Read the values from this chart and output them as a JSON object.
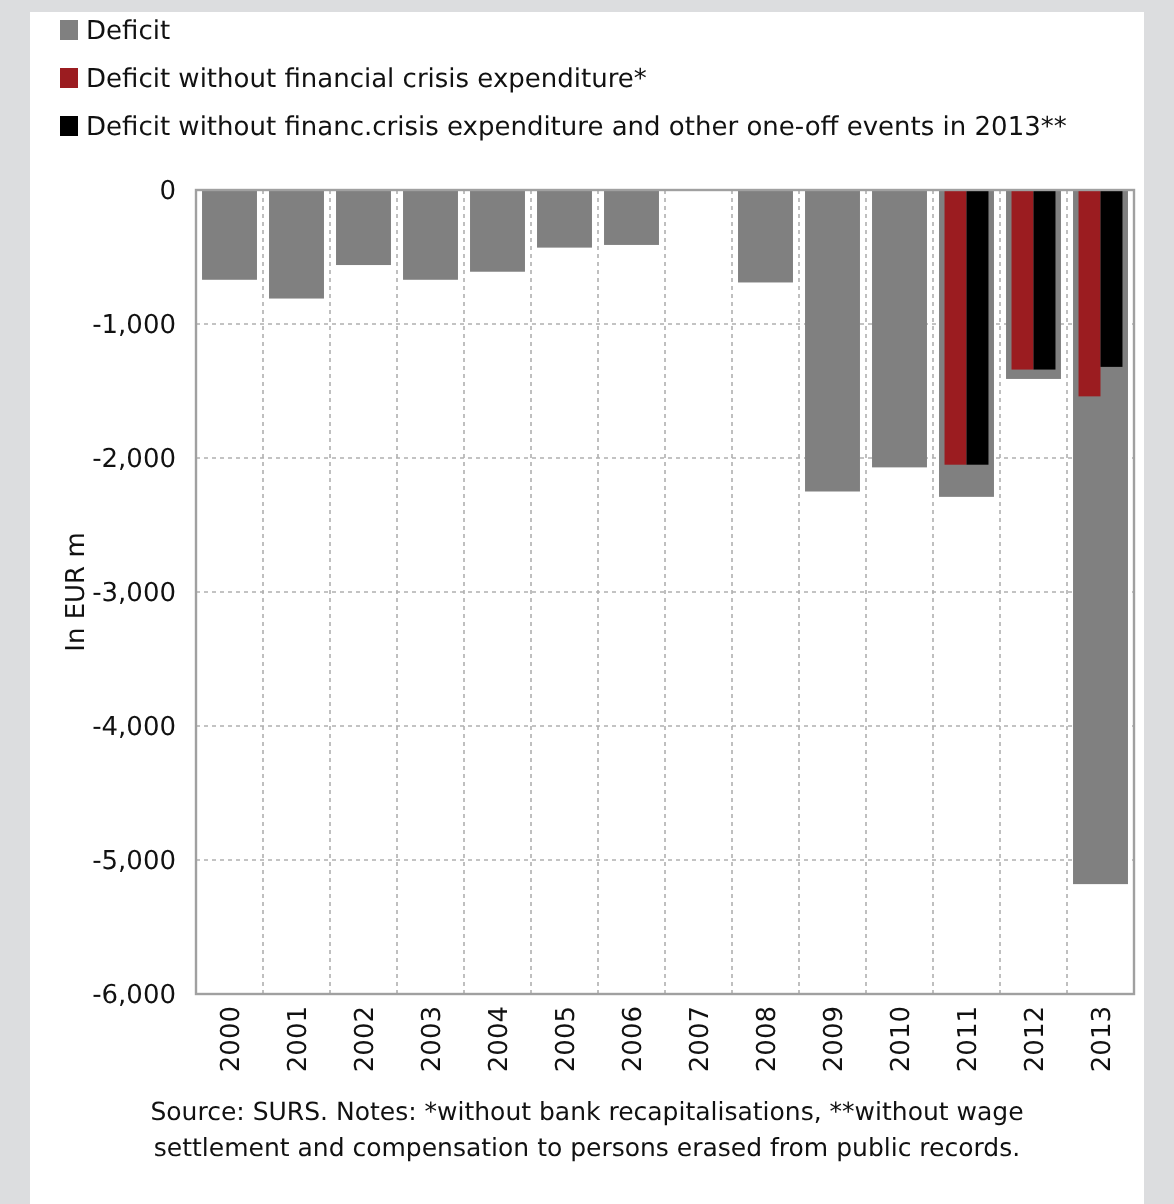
{
  "chart_data": {
    "type": "bar",
    "ylabel": "In EUR m",
    "categories": [
      "2000",
      "2001",
      "2002",
      "2003",
      "2004",
      "2005",
      "2006",
      "2007",
      "2008",
      "2009",
      "2010",
      "2011",
      "2012",
      "2013"
    ],
    "series": [
      {
        "name": "Deficit",
        "color": "#808080",
        "values": [
          -670,
          -810,
          -560,
          -670,
          -610,
          -430,
          -410,
          0,
          -690,
          -2250,
          -2070,
          -2290,
          -1410,
          -5180
        ]
      },
      {
        "name": "Deficit without financial crisis expenditure*",
        "color": "#9b1c20",
        "values": [
          null,
          null,
          null,
          null,
          null,
          null,
          null,
          null,
          null,
          null,
          null,
          -2050,
          -1340,
          -1540
        ]
      },
      {
        "name": "Deficit without financ.crisis expenditure and other one-off events in 2013**",
        "color": "#000000",
        "values": [
          null,
          null,
          null,
          null,
          null,
          null,
          null,
          null,
          null,
          null,
          null,
          -2050,
          -1340,
          -1320
        ]
      }
    ],
    "ylim": [
      -6000,
      0
    ],
    "yticks": [
      {
        "value": 0,
        "label": "0"
      },
      {
        "value": -1000,
        "label": "-1,000"
      },
      {
        "value": -2000,
        "label": "-2,000"
      },
      {
        "value": -3000,
        "label": "-3,000"
      },
      {
        "value": -4000,
        "label": "-4,000"
      },
      {
        "value": -5000,
        "label": "-5,000"
      },
      {
        "value": -6000,
        "label": "-6,000"
      }
    ],
    "grid": true,
    "legend": "top left",
    "annotations": [
      "Source: SURS. Notes: *without bank recapitalisations, **without wage settlement and compensation to persons erased from public records."
    ]
  }
}
